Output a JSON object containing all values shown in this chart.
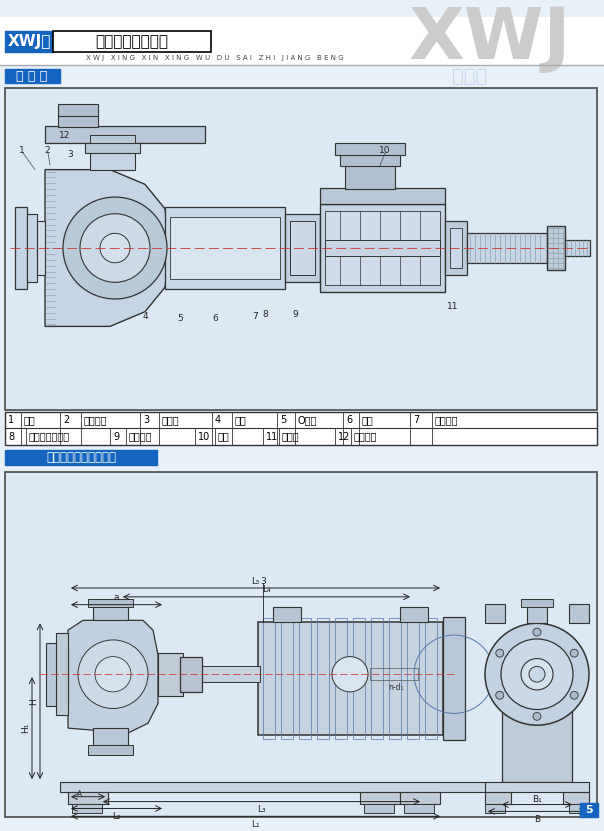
{
  "title_xwj": "XWJ型",
  "title_main": "新型无堵塞纸浆泵",
  "subtitle": "X W J   X I N G   X I N   X I N G   W U   D U   S A I   Z H I   J I A N G   B E N G",
  "section1": "结 构 图",
  "section2": "机组外形及安装尺寸图",
  "watermark": "XWJ",
  "bg_color": "#e8f0f8",
  "blue_label_bg": "#1565c0",
  "drawing_bg": "#dce8f4",
  "draw1_bg": "#dce8f4",
  "draw2_bg": "#dce8f4",
  "page_num": "5",
  "page_num_bg": "#1565c0",
  "table_row1_nums": [
    "1",
    "2",
    "3",
    "4",
    "5",
    "6",
    "7"
  ],
  "table_row1_texts": [
    "泵体",
    "调节螺杆",
    "耐磨板",
    "叶轮",
    "O形圈",
    "泵盖",
    "软管接头"
  ],
  "table_row2_nums": [
    "8",
    "9",
    "10",
    "11",
    "12"
  ],
  "table_row2_texts": [
    "填料或机械密封",
    "悬架部件",
    "支架",
    "挡水圈",
    "叶轮螺母"
  ],
  "line_color": "#333333",
  "dim_color": "#222222"
}
